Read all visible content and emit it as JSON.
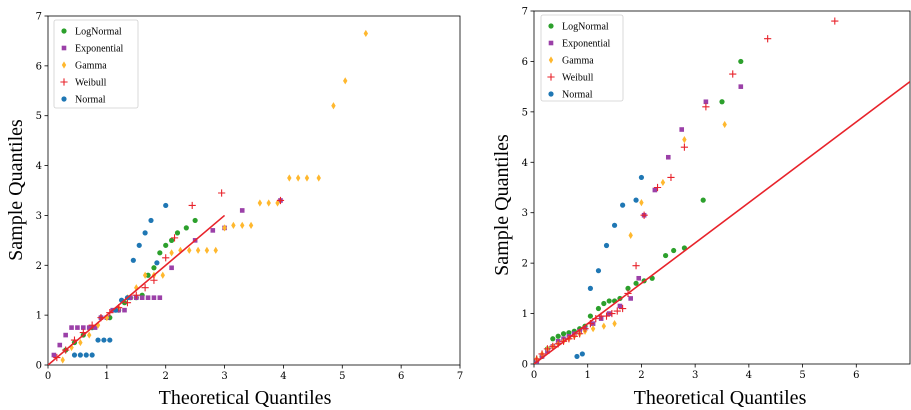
{
  "colors": {
    "LogNormal": "#2ca02c",
    "Exponential": "#9b40a8",
    "Gamma": "#ffb82e",
    "Weibull": "#e8232b",
    "Normal": "#1f77b4",
    "reference_line": "#e8232b"
  },
  "chart_data": [
    {
      "type": "scatter",
      "title": "",
      "xlabel": "Theoretical Quantiles",
      "ylabel": "Sample Quantiles",
      "xlim": [
        0,
        7
      ],
      "ylim": [
        0,
        7
      ],
      "xticks": [
        "0",
        "1",
        "2",
        "3",
        "4",
        "5",
        "6",
        "7"
      ],
      "yticks": [
        "0",
        "1",
        "2",
        "3",
        "4",
        "5",
        "6",
        "7"
      ],
      "legend_position": "top-left",
      "grid": false,
      "reference_line": {
        "x": [
          0,
          3
        ],
        "y": [
          0,
          3
        ]
      },
      "series": [
        {
          "name": "LogNormal",
          "marker": "circle",
          "x": [
            0.3,
            0.45,
            0.6,
            0.75,
            0.9,
            1.05,
            1.2,
            1.3,
            1.4,
            1.5,
            1.6,
            1.7,
            1.8,
            1.9,
            2.0,
            2.1,
            2.2,
            2.35,
            2.5
          ],
          "y": [
            0.3,
            0.45,
            0.6,
            0.75,
            0.95,
            0.95,
            1.1,
            1.25,
            1.35,
            1.35,
            1.4,
            1.8,
            1.95,
            2.25,
            2.4,
            2.5,
            2.65,
            2.75,
            2.9
          ]
        },
        {
          "name": "Exponential",
          "marker": "square",
          "x": [
            0.1,
            0.2,
            0.3,
            0.4,
            0.5,
            0.6,
            0.7,
            0.8,
            0.9,
            1.0,
            1.1,
            1.2,
            1.3,
            1.4,
            1.5,
            1.6,
            1.7,
            1.8,
            1.9,
            2.1,
            2.5,
            2.8,
            3.0,
            3.3,
            3.95
          ],
          "y": [
            0.2,
            0.4,
            0.6,
            0.75,
            0.75,
            0.75,
            0.75,
            0.75,
            0.95,
            0.95,
            1.1,
            1.1,
            1.1,
            1.35,
            1.35,
            1.35,
            1.35,
            1.35,
            1.35,
            1.95,
            2.5,
            2.7,
            2.75,
            3.1,
            3.3
          ]
        },
        {
          "name": "Gamma",
          "marker": "diamond",
          "x": [
            0.25,
            0.4,
            0.55,
            0.7,
            0.85,
            1.0,
            1.2,
            1.35,
            1.5,
            1.65,
            1.8,
            1.95,
            2.1,
            2.25,
            2.4,
            2.55,
            2.7,
            2.85,
            3.0,
            3.15,
            3.3,
            3.45,
            3.6,
            3.75,
            3.9,
            4.1,
            4.25,
            4.4,
            4.6,
            4.85,
            5.05,
            5.4
          ],
          "y": [
            0.1,
            0.35,
            0.45,
            0.6,
            0.8,
            0.95,
            1.15,
            1.35,
            1.55,
            1.8,
            1.8,
            1.8,
            2.25,
            2.3,
            2.3,
            2.3,
            2.3,
            2.3,
            2.75,
            2.8,
            2.8,
            2.8,
            3.25,
            3.25,
            3.25,
            3.75,
            3.75,
            3.75,
            3.75,
            5.2,
            5.7,
            6.65
          ]
        },
        {
          "name": "Weibull",
          "marker": "plus",
          "x": [
            0.15,
            0.3,
            0.45,
            0.6,
            0.75,
            0.9,
            1.05,
            1.2,
            1.35,
            1.5,
            1.65,
            1.8,
            2.0,
            2.15,
            2.45,
            2.95,
            3.95
          ],
          "y": [
            0.15,
            0.3,
            0.5,
            0.65,
            0.8,
            0.95,
            1.05,
            1.15,
            1.25,
            1.4,
            1.55,
            1.7,
            2.15,
            2.55,
            3.2,
            3.45,
            3.3
          ]
        },
        {
          "name": "Normal",
          "marker": "circle",
          "x": [
            0.45,
            0.55,
            0.65,
            0.75,
            0.85,
            0.95,
            1.05,
            1.15,
            1.25,
            1.35,
            1.45,
            1.55,
            1.65,
            1.75,
            1.85,
            2.0
          ],
          "y": [
            0.2,
            0.2,
            0.2,
            0.2,
            0.5,
            0.5,
            0.5,
            1.1,
            1.3,
            1.35,
            2.1,
            2.4,
            2.65,
            2.9,
            2.05,
            3.2
          ]
        }
      ]
    },
    {
      "type": "scatter",
      "title": "",
      "xlabel": "Theoretical Quantiles",
      "ylabel": "Sample Quantiles",
      "xlim": [
        0,
        7
      ],
      "ylim": [
        0,
        7
      ],
      "xticks": [
        "0",
        "1",
        "2",
        "3",
        "4",
        "5",
        "6"
      ],
      "yticks": [
        "0",
        "1",
        "2",
        "3",
        "4",
        "5",
        "6",
        "7"
      ],
      "legend_position": "top-left",
      "grid": false,
      "reference_line": {
        "x": [
          0,
          7
        ],
        "y": [
          0,
          5.6
        ]
      },
      "series": [
        {
          "name": "LogNormal",
          "marker": "circle",
          "x": [
            0.05,
            0.15,
            0.25,
            0.35,
            0.45,
            0.55,
            0.65,
            0.75,
            0.85,
            0.95,
            1.05,
            1.2,
            1.3,
            1.4,
            1.5,
            1.6,
            1.75,
            1.9,
            2.05,
            2.2,
            2.45,
            2.6,
            2.8,
            3.15,
            3.5,
            3.85
          ],
          "y": [
            0.05,
            0.15,
            0.3,
            0.5,
            0.55,
            0.6,
            0.62,
            0.65,
            0.7,
            0.75,
            0.95,
            1.1,
            1.2,
            1.25,
            1.25,
            1.3,
            1.5,
            1.6,
            1.65,
            1.7,
            2.15,
            2.25,
            2.3,
            3.25,
            5.2,
            6.0
          ]
        },
        {
          "name": "Exponential",
          "marker": "square",
          "x": [
            0.05,
            0.15,
            0.25,
            0.35,
            0.45,
            0.55,
            0.65,
            0.75,
            0.85,
            0.95,
            1.1,
            1.25,
            1.4,
            1.6,
            1.8,
            1.95,
            2.05,
            2.25,
            2.5,
            2.75,
            3.2,
            3.85
          ],
          "y": [
            0.05,
            0.15,
            0.25,
            0.35,
            0.45,
            0.5,
            0.55,
            0.6,
            0.65,
            0.7,
            0.8,
            0.9,
            1.0,
            1.15,
            1.3,
            1.7,
            2.95,
            3.45,
            4.1,
            4.65,
            5.2,
            5.5
          ]
        },
        {
          "name": "Gamma",
          "marker": "diamond",
          "x": [
            0.05,
            0.15,
            0.25,
            0.35,
            0.45,
            0.55,
            0.65,
            0.75,
            0.85,
            0.95,
            1.1,
            1.3,
            1.5,
            1.8,
            2.0,
            2.4,
            2.8,
            3.55
          ],
          "y": [
            0.1,
            0.2,
            0.3,
            0.35,
            0.4,
            0.45,
            0.5,
            0.55,
            0.6,
            0.65,
            0.7,
            0.75,
            0.8,
            2.55,
            3.2,
            3.6,
            4.45,
            4.75
          ]
        },
        {
          "name": "Weibull",
          "marker": "plus",
          "x": [
            0.05,
            0.15,
            0.25,
            0.35,
            0.45,
            0.55,
            0.65,
            0.75,
            0.85,
            0.95,
            1.05,
            1.15,
            1.25,
            1.35,
            1.45,
            1.55,
            1.65,
            1.75,
            1.9,
            2.05,
            2.3,
            2.55,
            2.8,
            3.2,
            3.7,
            4.35,
            5.6
          ],
          "y": [
            0.1,
            0.2,
            0.3,
            0.35,
            0.4,
            0.45,
            0.5,
            0.55,
            0.6,
            0.7,
            0.8,
            0.9,
            0.95,
            0.95,
            1.0,
            1.05,
            1.1,
            1.4,
            1.95,
            2.95,
            3.5,
            3.7,
            4.3,
            5.1,
            5.75,
            6.45,
            6.8
          ]
        },
        {
          "name": "Normal",
          "marker": "circle",
          "x": [
            0.8,
            0.9,
            1.05,
            1.2,
            1.35,
            1.5,
            1.65,
            1.9,
            2.0
          ],
          "y": [
            0.15,
            0.2,
            1.5,
            1.85,
            2.35,
            2.75,
            3.15,
            3.25,
            3.7
          ]
        }
      ]
    }
  ]
}
